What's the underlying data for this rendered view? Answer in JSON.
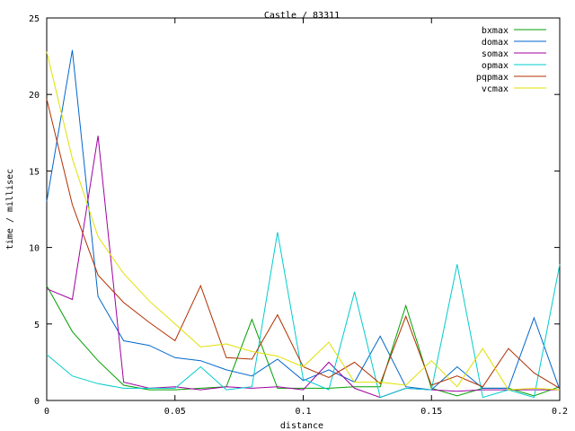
{
  "chart_data": {
    "type": "line",
    "title": "Castle / 83311",
    "xlabel": "distance",
    "ylabel": "time / millisec",
    "xlim": [
      0,
      0.2
    ],
    "ylim": [
      0,
      25
    ],
    "xticks": [
      0,
      0.05,
      0.1,
      0.15,
      0.2
    ],
    "xtick_labels": [
      "0",
      "0.05",
      "0.1",
      "0.15",
      "0.2"
    ],
    "yticks": [
      0,
      5,
      10,
      15,
      20,
      25
    ],
    "ytick_labels": [
      "0",
      "5",
      "10",
      "15",
      "20",
      "25"
    ],
    "grid": false,
    "legend_position": "top-right",
    "x": [
      0,
      0.01,
      0.02,
      0.03,
      0.04,
      0.05,
      0.06,
      0.07,
      0.08,
      0.09,
      0.1,
      0.11,
      0.12,
      0.13,
      0.14,
      0.15,
      0.16,
      0.17,
      0.18,
      0.19,
      0.2
    ],
    "series": [
      {
        "name": "bxmax",
        "color": "#00a000",
        "values": [
          7.5,
          4.5,
          2.6,
          1.0,
          0.7,
          0.7,
          0.8,
          0.9,
          5.3,
          0.8,
          0.8,
          0.8,
          0.9,
          0.9,
          6.2,
          0.8,
          0.3,
          0.8,
          0.8,
          0.3,
          0.9
        ]
      },
      {
        "name": "domax",
        "color": "#0066cc",
        "values": [
          13.0,
          22.9,
          6.8,
          3.9,
          3.6,
          2.8,
          2.6,
          2.0,
          1.6,
          2.7,
          1.3,
          2.0,
          1.2,
          4.2,
          0.9,
          0.7,
          2.2,
          0.8,
          0.8,
          5.4,
          0.7
        ]
      },
      {
        "name": "somax",
        "color": "#a000a0",
        "values": [
          7.3,
          6.6,
          17.3,
          1.2,
          0.8,
          0.9,
          0.7,
          0.9,
          0.8,
          0.9,
          0.7,
          2.5,
          0.8,
          0.2,
          0.8,
          0.7,
          0.6,
          0.7,
          0.7,
          0.7,
          0.7
        ]
      },
      {
        "name": "opmax",
        "color": "#00cccc",
        "values": [
          3.0,
          1.6,
          1.1,
          0.8,
          0.8,
          0.8,
          2.2,
          0.7,
          0.9,
          11.0,
          1.4,
          0.7,
          7.1,
          0.2,
          0.8,
          0.7,
          8.9,
          0.2,
          0.7,
          0.2,
          8.9
        ]
      },
      {
        "name": "pqpmax",
        "color": "#b03000",
        "values": [
          19.7,
          12.8,
          8.2,
          6.4,
          5.1,
          3.9,
          7.5,
          2.8,
          2.7,
          5.6,
          2.2,
          1.5,
          2.5,
          1.1,
          5.5,
          1.0,
          1.6,
          0.9,
          3.4,
          1.8,
          0.8
        ]
      },
      {
        "name": "vcmax",
        "color": "#e0e000",
        "values": [
          22.8,
          15.8,
          10.7,
          8.3,
          6.5,
          5.0,
          3.5,
          3.7,
          3.2,
          2.9,
          2.2,
          3.8,
          1.2,
          1.2,
          1.0,
          2.6,
          0.9,
          3.4,
          0.7,
          0.8,
          0.7
        ]
      }
    ]
  }
}
